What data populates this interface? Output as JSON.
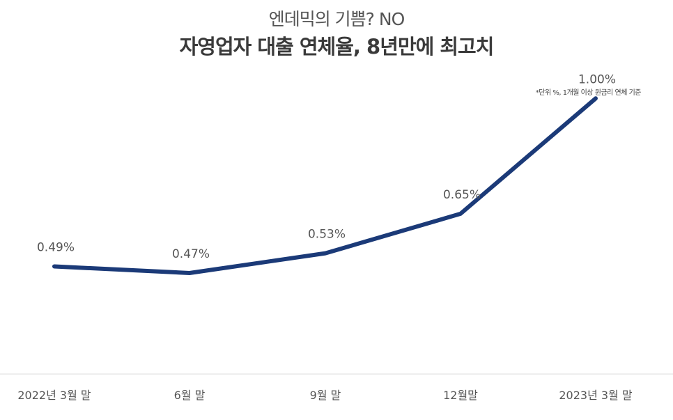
{
  "chart_data": {
    "type": "line",
    "subtitle": "엔데믹의 기쁨? NO",
    "title": "자영업자 대출 연체율, 8년만에 최고치",
    "note": "*단위 %, 1개월 이상 원금리 연체 기준",
    "categories": [
      "2022년 3월 말",
      "6월 말",
      "9월 말",
      "12월말",
      "2023년 3월 말"
    ],
    "series": [
      {
        "values": [
          0.49,
          0.47,
          0.53,
          0.65,
          1.0
        ],
        "labels": [
          "0.49%",
          "0.47%",
          "0.53%",
          "0.65%",
          "1.00%"
        ]
      }
    ],
    "line_color": "#1b3a78",
    "axis_color": "#dddddd",
    "grid": false,
    "legend": "none"
  }
}
